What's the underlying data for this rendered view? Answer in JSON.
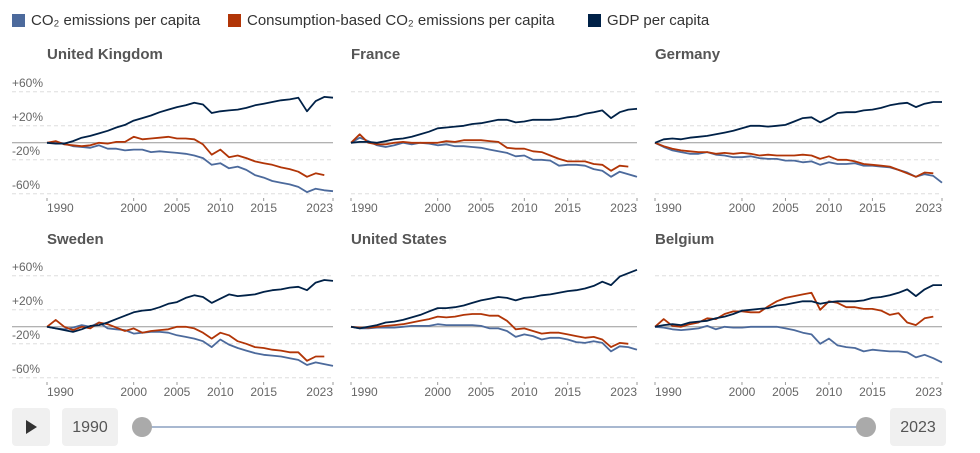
{
  "chart_data": [
    {
      "type": "line",
      "title": "United Kingdom",
      "x": [
        1990,
        1991,
        1992,
        1993,
        1994,
        1995,
        1996,
        1997,
        1998,
        1999,
        2000,
        2001,
        2002,
        2003,
        2004,
        2005,
        2006,
        2007,
        2008,
        2009,
        2010,
        2011,
        2012,
        2013,
        2014,
        2015,
        2016,
        2017,
        2018,
        2019,
        2020,
        2021,
        2022,
        2023
      ],
      "xlim": [
        1990,
        2023
      ],
      "xticks": [
        1990,
        2000,
        2005,
        2010,
        2015,
        2023
      ],
      "ylim": [
        -65,
        75
      ],
      "yticks": [
        {
          "value": 60,
          "label": "+60%"
        },
        {
          "value": 20,
          "label": "+20%"
        },
        {
          "value": -20,
          "label": "-20%"
        },
        {
          "value": -60,
          "label": "-60%"
        }
      ],
      "series": [
        {
          "name": "CO₂ emissions per capita",
          "color": "#4c6a9c",
          "values": [
            0,
            1,
            -1,
            -4,
            -5,
            -6,
            -3,
            -7,
            -7,
            -9,
            -8,
            -8,
            -11,
            -10,
            -11,
            -12,
            -13,
            -15,
            -18,
            -26,
            -24,
            -30,
            -28,
            -32,
            -38,
            -41,
            -45,
            -47,
            -49,
            -52,
            -58,
            -54,
            -56,
            -57
          ]
        },
        {
          "name": "Consumption-based CO₂ emissions per capita",
          "color": "#b13507",
          "values": [
            0,
            2,
            -2,
            -3,
            -4,
            -3,
            0,
            -1,
            1,
            1,
            7,
            4,
            5,
            6,
            7,
            5,
            5,
            4,
            -2,
            -14,
            -8,
            -17,
            -15,
            -18,
            -22,
            -24,
            -26,
            -29,
            -31,
            -34,
            -40,
            -36,
            -38,
            null
          ]
        },
        {
          "name": "GDP per capita",
          "color": "#002147",
          "values": [
            0,
            -1,
            -1,
            2,
            6,
            8,
            11,
            14,
            18,
            21,
            26,
            29,
            32,
            36,
            39,
            42,
            44,
            47,
            45,
            35,
            37,
            38,
            39,
            41,
            44,
            46,
            48,
            50,
            51,
            53,
            37,
            49,
            54,
            53
          ]
        }
      ]
    },
    {
      "type": "line",
      "title": "France",
      "x": [
        1990,
        1991,
        1992,
        1993,
        1994,
        1995,
        1996,
        1997,
        1998,
        1999,
        2000,
        2001,
        2002,
        2003,
        2004,
        2005,
        2006,
        2007,
        2008,
        2009,
        2010,
        2011,
        2012,
        2013,
        2014,
        2015,
        2016,
        2017,
        2018,
        2019,
        2020,
        2021,
        2022,
        2023
      ],
      "xlim": [
        1990,
        2023
      ],
      "xticks": [
        1990,
        2000,
        2005,
        2010,
        2015,
        2023
      ],
      "ylim": [
        -65,
        75
      ],
      "yticks": [
        {
          "value": 60,
          "label": "+60%"
        },
        {
          "value": 20,
          "label": "+20%"
        },
        {
          "value": -20,
          "label": "-20%"
        },
        {
          "value": -60,
          "label": "-60%"
        }
      ],
      "series": [
        {
          "name": "CO₂ emissions per capita",
          "color": "#4c6a9c",
          "values": [
            0,
            6,
            2,
            -3,
            -5,
            -3,
            0,
            -2,
            0,
            -1,
            -3,
            -2,
            -4,
            -4,
            -5,
            -6,
            -8,
            -10,
            -12,
            -16,
            -15,
            -20,
            -20,
            -21,
            -27,
            -26,
            -26,
            -27,
            -31,
            -33,
            -40,
            -34,
            -37,
            -40
          ]
        },
        {
          "name": "Consumption-based CO₂ emissions per capita",
          "color": "#b13507",
          "values": [
            0,
            10,
            0,
            -2,
            -2,
            0,
            1,
            0,
            0,
            0,
            0,
            2,
            1,
            3,
            3,
            3,
            2,
            1,
            -6,
            -7,
            -7,
            -10,
            -11,
            -15,
            -19,
            -22,
            -22,
            -22,
            -25,
            -26,
            -33,
            -27,
            -28,
            null
          ]
        },
        {
          "name": "GDP per capita",
          "color": "#002147",
          "values": [
            0,
            1,
            1,
            0,
            2,
            4,
            5,
            7,
            10,
            13,
            17,
            18,
            19,
            20,
            22,
            23,
            25,
            27,
            27,
            24,
            25,
            27,
            27,
            27,
            28,
            30,
            31,
            34,
            36,
            38,
            29,
            36,
            39,
            40
          ]
        }
      ]
    },
    {
      "type": "line",
      "title": "Germany",
      "x": [
        1990,
        1991,
        1992,
        1993,
        1994,
        1995,
        1996,
        1997,
        1998,
        1999,
        2000,
        2001,
        2002,
        2003,
        2004,
        2005,
        2006,
        2007,
        2008,
        2009,
        2010,
        2011,
        2012,
        2013,
        2014,
        2015,
        2016,
        2017,
        2018,
        2019,
        2020,
        2021,
        2022,
        2023
      ],
      "xlim": [
        1990,
        2023
      ],
      "xticks": [
        1990,
        2000,
        2005,
        2010,
        2015,
        2023
      ],
      "ylim": [
        -65,
        75
      ],
      "yticks": [
        {
          "value": 60,
          "label": "+60%"
        },
        {
          "value": 20,
          "label": "+20%"
        },
        {
          "value": -20,
          "label": "-20%"
        },
        {
          "value": -60,
          "label": "-60%"
        }
      ],
      "series": [
        {
          "name": "CO₂ emissions per capita",
          "color": "#4c6a9c",
          "values": [
            0,
            -5,
            -9,
            -11,
            -13,
            -13,
            -11,
            -14,
            -15,
            -17,
            -17,
            -16,
            -18,
            -19,
            -19,
            -21,
            -21,
            -23,
            -22,
            -26,
            -23,
            -25,
            -25,
            -24,
            -27,
            -27,
            -28,
            -29,
            -32,
            -35,
            -40,
            -37,
            -39,
            -47
          ]
        },
        {
          "name": "Consumption-based CO₂ emissions per capita",
          "color": "#b13507",
          "values": [
            0,
            -4,
            -7,
            -9,
            -10,
            -11,
            -11,
            -13,
            -12,
            -13,
            -12,
            -13,
            -15,
            -14,
            -15,
            -15,
            -15,
            -14,
            -15,
            -19,
            -16,
            -20,
            -20,
            -22,
            -25,
            -26,
            -27,
            -28,
            -32,
            -36,
            -40,
            -35,
            -36,
            null
          ]
        },
        {
          "name": "GDP per capita",
          "color": "#002147",
          "values": [
            0,
            4,
            5,
            4,
            6,
            7,
            8,
            10,
            12,
            14,
            17,
            20,
            20,
            19,
            20,
            21,
            25,
            29,
            30,
            24,
            29,
            35,
            36,
            36,
            38,
            39,
            41,
            44,
            46,
            47,
            42,
            46,
            48,
            48
          ]
        }
      ]
    },
    {
      "type": "line",
      "title": "Sweden",
      "x": [
        1990,
        1991,
        1992,
        1993,
        1994,
        1995,
        1996,
        1997,
        1998,
        1999,
        2000,
        2001,
        2002,
        2003,
        2004,
        2005,
        2006,
        2007,
        2008,
        2009,
        2010,
        2011,
        2012,
        2013,
        2014,
        2015,
        2016,
        2017,
        2018,
        2019,
        2020,
        2021,
        2022,
        2023
      ],
      "xlim": [
        1990,
        2023
      ],
      "xticks": [
        1990,
        2000,
        2005,
        2010,
        2015,
        2023
      ],
      "ylim": [
        -65,
        75
      ],
      "yticks": [
        {
          "value": 60,
          "label": "+60%"
        },
        {
          "value": 20,
          "label": "+20%"
        },
        {
          "value": -20,
          "label": "-20%"
        },
        {
          "value": -60,
          "label": "-60%"
        }
      ],
      "series": [
        {
          "name": "CO₂ emissions per capita",
          "color": "#4c6a9c",
          "values": [
            0,
            -2,
            -3,
            -1,
            2,
            0,
            5,
            -2,
            -3,
            -4,
            -8,
            -7,
            -6,
            -6,
            -7,
            -10,
            -12,
            -14,
            -17,
            -24,
            -15,
            -21,
            -25,
            -28,
            -31,
            -33,
            -34,
            -35,
            -37,
            -39,
            -45,
            -42,
            -44,
            -46
          ]
        },
        {
          "name": "Consumption-based CO₂ emissions per capita",
          "color": "#b13507",
          "values": [
            0,
            8,
            0,
            -4,
            0,
            -2,
            5,
            3,
            -1,
            -5,
            -2,
            -7,
            -5,
            -4,
            -3,
            0,
            0,
            -2,
            -7,
            -14,
            -7,
            -10,
            -17,
            -20,
            -24,
            -25,
            -27,
            -28,
            -30,
            -30,
            -40,
            -35,
            -35,
            null
          ]
        },
        {
          "name": "GDP per capita",
          "color": "#002147",
          "values": [
            0,
            -2,
            -4,
            -6,
            -3,
            1,
            2,
            5,
            9,
            13,
            17,
            19,
            20,
            23,
            27,
            29,
            34,
            37,
            35,
            28,
            33,
            38,
            36,
            37,
            38,
            41,
            43,
            44,
            46,
            47,
            43,
            52,
            55,
            54
          ]
        }
      ]
    },
    {
      "type": "line",
      "title": "United States",
      "x": [
        1990,
        1991,
        1992,
        1993,
        1994,
        1995,
        1996,
        1997,
        1998,
        1999,
        2000,
        2001,
        2002,
        2003,
        2004,
        2005,
        2006,
        2007,
        2008,
        2009,
        2010,
        2011,
        2012,
        2013,
        2014,
        2015,
        2016,
        2017,
        2018,
        2019,
        2020,
        2021,
        2022,
        2023
      ],
      "xlim": [
        1990,
        2023
      ],
      "xticks": [
        1990,
        2000,
        2005,
        2010,
        2015,
        2023
      ],
      "ylim": [
        -65,
        75
      ],
      "yticks": [
        {
          "value": 60,
          "label": "+60%"
        },
        {
          "value": 20,
          "label": "+20%"
        },
        {
          "value": -20,
          "label": "-20%"
        },
        {
          "value": -60,
          "label": "-60%"
        }
      ],
      "series": [
        {
          "name": "CO₂ emissions per capita",
          "color": "#4c6a9c",
          "values": [
            0,
            -2,
            -2,
            -1,
            -1,
            -1,
            0,
            1,
            1,
            1,
            3,
            2,
            2,
            2,
            2,
            1,
            -2,
            -2,
            -5,
            -12,
            -9,
            -11,
            -15,
            -13,
            -13,
            -15,
            -18,
            -19,
            -17,
            -19,
            -29,
            -23,
            -24,
            -27
          ]
        },
        {
          "name": "Consumption-based CO₂ emissions per capita",
          "color": "#b13507",
          "values": [
            0,
            -1,
            -1,
            0,
            1,
            2,
            3,
            5,
            7,
            9,
            12,
            11,
            12,
            14,
            15,
            15,
            13,
            13,
            7,
            -3,
            -2,
            -5,
            -8,
            -7,
            -7,
            -9,
            -11,
            -13,
            -12,
            -15,
            -24,
            -19,
            -20,
            null
          ]
        },
        {
          "name": "GDP per capita",
          "color": "#002147",
          "values": [
            0,
            -2,
            0,
            2,
            5,
            6,
            8,
            11,
            14,
            18,
            22,
            22,
            23,
            25,
            28,
            31,
            33,
            35,
            34,
            31,
            34,
            35,
            37,
            38,
            40,
            42,
            43,
            45,
            48,
            53,
            49,
            59,
            63,
            67
          ]
        }
      ]
    },
    {
      "type": "line",
      "title": "Belgium",
      "x": [
        1990,
        1991,
        1992,
        1993,
        1994,
        1995,
        1996,
        1997,
        1998,
        1999,
        2000,
        2001,
        2002,
        2003,
        2004,
        2005,
        2006,
        2007,
        2008,
        2009,
        2010,
        2011,
        2012,
        2013,
        2014,
        2015,
        2016,
        2017,
        2018,
        2019,
        2020,
        2021,
        2022,
        2023
      ],
      "xlim": [
        1990,
        2023
      ],
      "xticks": [
        1990,
        2000,
        2005,
        2010,
        2015,
        2023
      ],
      "ylim": [
        -65,
        75
      ],
      "yticks": [
        {
          "value": 60,
          "label": "+60%"
        },
        {
          "value": 20,
          "label": "+20%"
        },
        {
          "value": -20,
          "label": "-20%"
        },
        {
          "value": -60,
          "label": "-60%"
        }
      ],
      "series": [
        {
          "name": "CO₂ emissions per capita",
          "color": "#4c6a9c",
          "values": [
            0,
            -1,
            -3,
            -4,
            -3,
            -2,
            1,
            -3,
            0,
            -1,
            -1,
            0,
            0,
            0,
            0,
            -2,
            -4,
            -7,
            -9,
            -20,
            -14,
            -22,
            -24,
            -25,
            -29,
            -27,
            -28,
            -29,
            -29,
            -30,
            -36,
            -33,
            -37,
            -42
          ]
        },
        {
          "name": "Consumption-based CO₂ emissions per capita",
          "color": "#b13507",
          "values": [
            0,
            9,
            1,
            0,
            3,
            5,
            10,
            9,
            15,
            18,
            18,
            17,
            17,
            24,
            30,
            34,
            36,
            38,
            40,
            20,
            30,
            28,
            23,
            23,
            21,
            21,
            19,
            14,
            16,
            5,
            2,
            10,
            12,
            null
          ]
        },
        {
          "name": "GDP per capita",
          "color": "#002147",
          "values": [
            0,
            2,
            3,
            2,
            5,
            6,
            7,
            10,
            12,
            15,
            19,
            20,
            21,
            22,
            25,
            26,
            28,
            30,
            30,
            27,
            29,
            30,
            30,
            30,
            31,
            34,
            35,
            37,
            40,
            44,
            36,
            44,
            49,
            49
          ]
        }
      ]
    }
  ],
  "controls": {
    "start": "1990",
    "end": "2023"
  }
}
